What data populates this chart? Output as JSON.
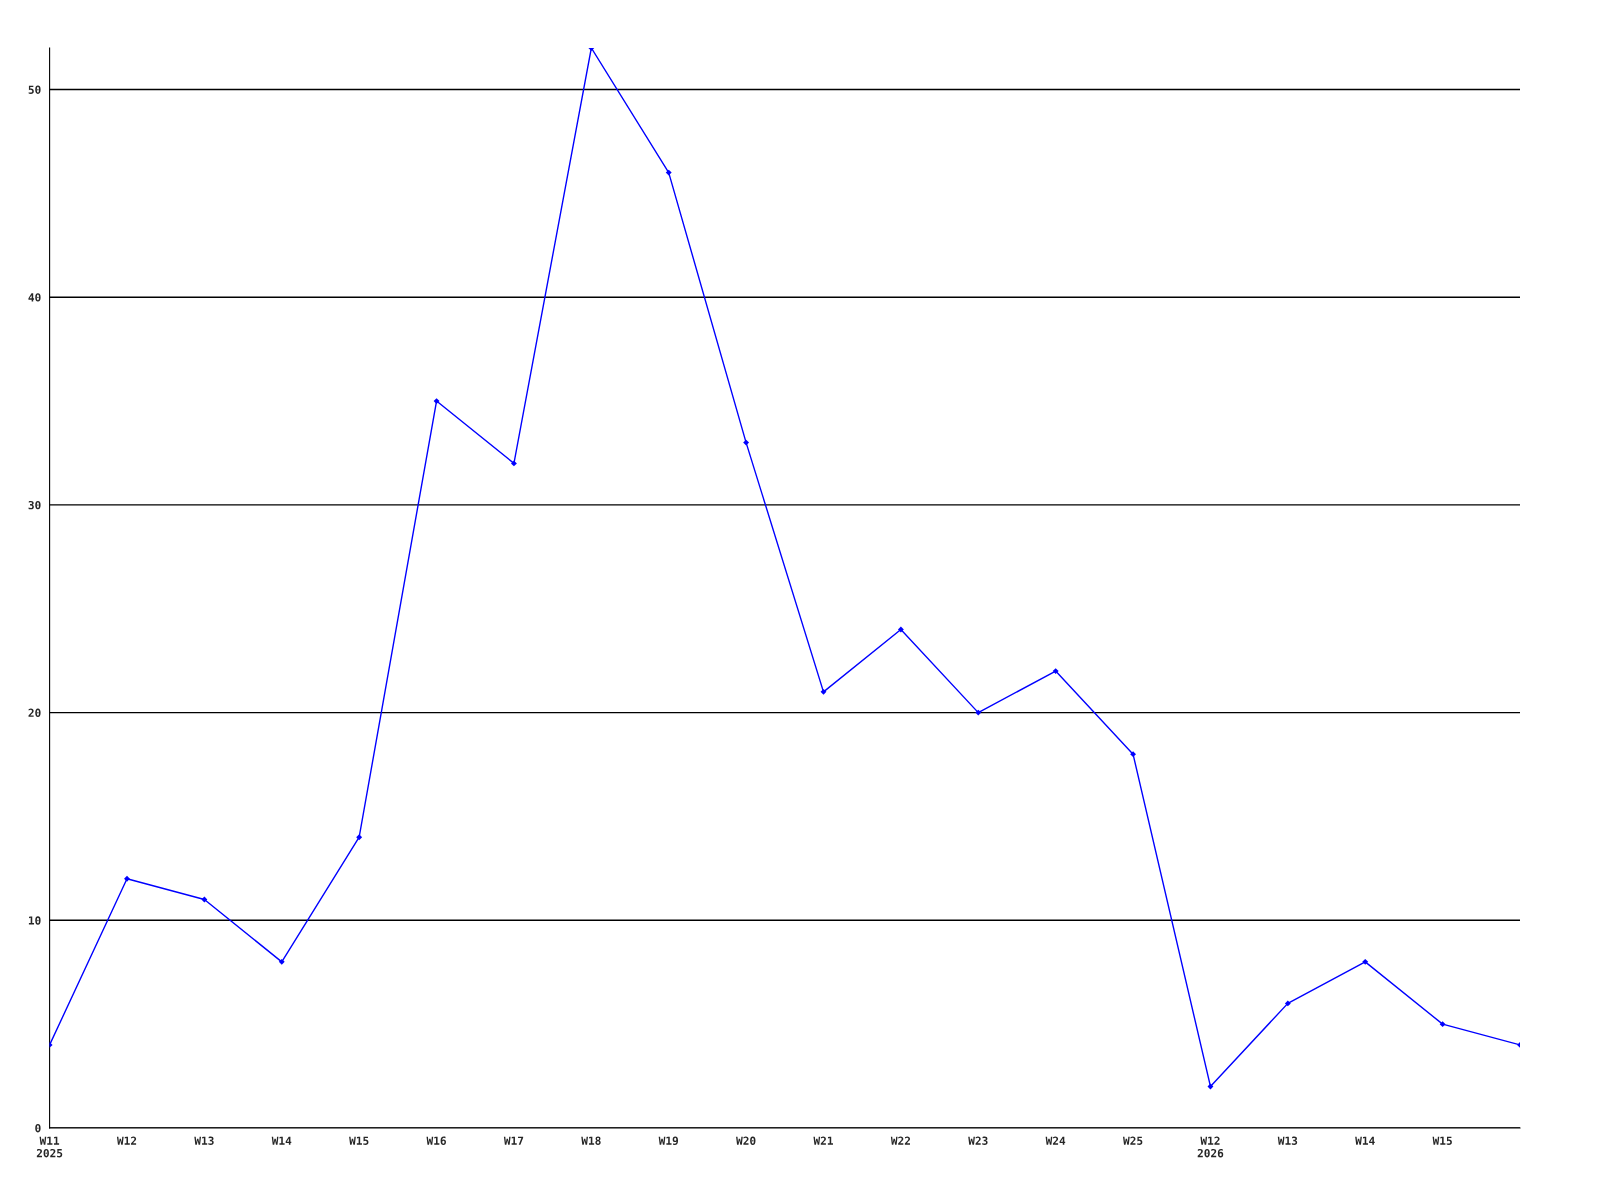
{
  "chart_data": {
    "type": "line",
    "categories": [
      "W11\n2025",
      "W12",
      "W13",
      "W14",
      "W15",
      "W16",
      "W17",
      "W18",
      "W19",
      "W20",
      "W21",
      "W22",
      "W23",
      "W24",
      "W25",
      "W12\n2026",
      "W13",
      "W14",
      "W15",
      null
    ],
    "series": [
      {
        "color": "#0000ff",
        "values": [
          4,
          12,
          11,
          8,
          14,
          35,
          32,
          52,
          46,
          33,
          21,
          24,
          20,
          22,
          18,
          2,
          6,
          8,
          5,
          4
        ]
      }
    ],
    "ylim": [
      0,
      52
    ],
    "yticks": [
      0,
      10,
      20,
      30,
      40,
      50
    ],
    "grid": "y",
    "marker": "diamond",
    "line_style": "solid",
    "legend": false
  }
}
